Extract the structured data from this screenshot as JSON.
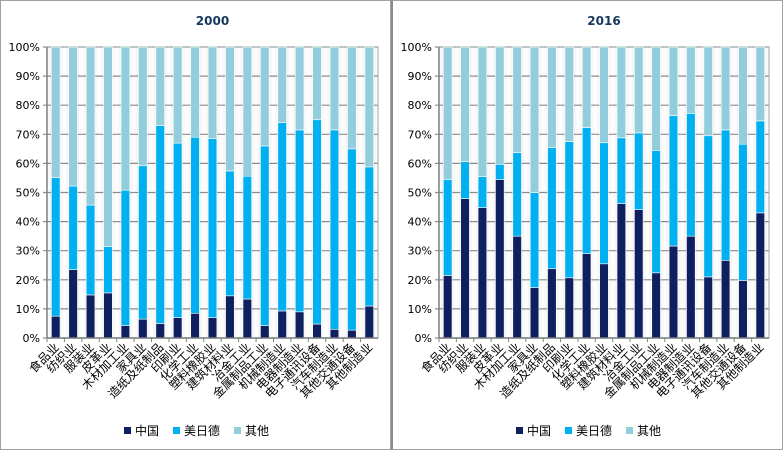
{
  "chart_data": [
    {
      "type": "bar",
      "stacked": "percent",
      "title": "2000",
      "xlabel": "",
      "ylabel": "",
      "ylim": [
        0,
        100
      ],
      "yticks": [
        "0%",
        "10%",
        "20%",
        "30%",
        "40%",
        "50%",
        "60%",
        "70%",
        "80%",
        "90%",
        "100%"
      ],
      "grid": true,
      "legend_position": "bottom",
      "categories": [
        "食品业",
        "纺织业",
        "服装业",
        "皮革业",
        "木材加工业",
        "家具业",
        "造纸及纸制品",
        "印刷业",
        "化学工业",
        "塑料橡胶业",
        "建筑材料业",
        "冶金工业",
        "金属制品工业",
        "机械制造业",
        "电器制造业",
        "电子通讯设备",
        "汽车制造业",
        "其他交通设备",
        "其他制造业"
      ],
      "series": [
        {
          "name": "中国",
          "color": "#0f2060",
          "values": [
            7.5,
            23.5,
            14.8,
            15.5,
            4.3,
            6.5,
            5.0,
            7.0,
            8.5,
            7.0,
            14.5,
            13.4,
            4.3,
            9.3,
            9.0,
            4.8,
            3.0,
            2.7,
            11.0
          ]
        },
        {
          "name": "美日德",
          "color": "#00b0f0",
          "values": [
            47.6,
            28.7,
            30.9,
            15.9,
            46.5,
            52.7,
            68.0,
            60.0,
            60.5,
            61.5,
            42.9,
            42.2,
            61.7,
            64.7,
            62.5,
            70.2,
            68.5,
            62.3,
            47.8
          ]
        },
        {
          "name": "其他",
          "color": "#92cddc",
          "values": [
            44.9,
            47.8,
            54.3,
            68.6,
            49.2,
            40.8,
            27.0,
            33.0,
            31.0,
            31.5,
            42.6,
            44.4,
            34.0,
            26.0,
            28.5,
            25.0,
            28.5,
            35.0,
            41.2
          ]
        }
      ]
    },
    {
      "type": "bar",
      "stacked": "percent",
      "title": "2016",
      "xlabel": "",
      "ylabel": "",
      "ylim": [
        0,
        100
      ],
      "yticks": [
        "0%",
        "10%",
        "20%",
        "30%",
        "40%",
        "50%",
        "60%",
        "70%",
        "80%",
        "90%",
        "100%"
      ],
      "grid": true,
      "legend_position": "bottom",
      "categories": [
        "食品业",
        "纺织业",
        "服装业",
        "皮革业",
        "木材加工业",
        "家具业",
        "造纸及纸制品",
        "印刷业",
        "化学工业",
        "塑料橡胶业",
        "建筑材料业",
        "冶金工业",
        "金属制品工业",
        "机械制造业",
        "电器制造业",
        "电子通讯设备",
        "汽车制造业",
        "其他交通设备",
        "其他制造业"
      ],
      "series": [
        {
          "name": "中国",
          "color": "#0f2060",
          "values": [
            21.5,
            47.9,
            44.8,
            54.4,
            35.0,
            17.3,
            23.8,
            20.7,
            29.0,
            25.5,
            46.2,
            44.1,
            22.4,
            31.6,
            35.0,
            21.0,
            26.7,
            19.8,
            43.0
          ]
        },
        {
          "name": "美日德",
          "color": "#00b0f0",
          "values": [
            33.0,
            12.7,
            10.7,
            5.3,
            28.7,
            32.7,
            41.6,
            46.8,
            43.3,
            41.6,
            22.6,
            26.4,
            42.1,
            44.8,
            42.2,
            48.5,
            44.8,
            46.8,
            31.6
          ]
        },
        {
          "name": "其他",
          "color": "#92cddc",
          "values": [
            45.5,
            39.4,
            44.5,
            40.3,
            36.3,
            50.0,
            34.6,
            32.5,
            27.7,
            32.9,
            31.2,
            29.5,
            35.5,
            23.6,
            22.8,
            30.5,
            28.5,
            33.4,
            25.4
          ]
        }
      ]
    }
  ],
  "legend": [
    {
      "label": "中国",
      "color": "#0f2060"
    },
    {
      "label": "美日德",
      "color": "#00b0f0"
    },
    {
      "label": "其他",
      "color": "#92cddc"
    }
  ]
}
